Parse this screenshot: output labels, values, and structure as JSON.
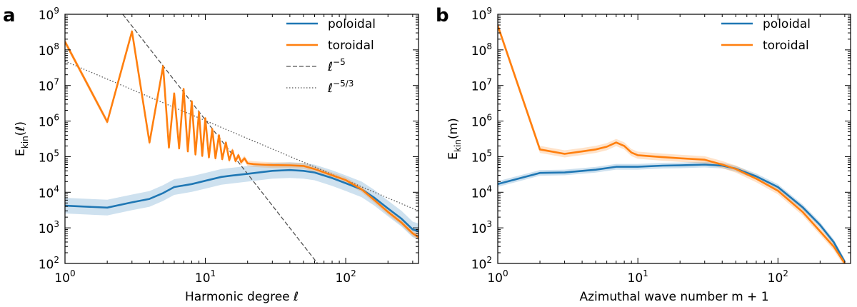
{
  "chart_data": [
    {
      "type": "line",
      "panel": "a",
      "xscale": "log",
      "yscale": "log",
      "xlim": [
        1,
        330
      ],
      "ylim": [
        100,
        1000000000
      ],
      "xlabel": "Harmonic degree ℓ",
      "ylabel": "E_kin(ℓ)",
      "ylabel_main": "E",
      "ylabel_sub": "kin",
      "ylabel_arg": "(ℓ)",
      "xticks": [
        {
          "value": 1,
          "base": "10",
          "exp": "0"
        },
        {
          "value": 10,
          "base": "10",
          "exp": "1"
        },
        {
          "value": 100,
          "base": "10",
          "exp": "2"
        }
      ],
      "yticks": [
        {
          "value": 100,
          "base": "10",
          "exp": "2"
        },
        {
          "value": 1000,
          "base": "10",
          "exp": "3"
        },
        {
          "value": 10000,
          "base": "10",
          "exp": "4"
        },
        {
          "value": 100000,
          "base": "10",
          "exp": "5"
        },
        {
          "value": 1000000,
          "base": "10",
          "exp": "6"
        },
        {
          "value": 10000000,
          "base": "10",
          "exp": "7"
        },
        {
          "value": 100000000,
          "base": "10",
          "exp": "8"
        },
        {
          "value": 1000000000,
          "base": "10",
          "exp": "9"
        }
      ],
      "legend_position": "top-right",
      "legend": [
        {
          "label": "poloidal",
          "style": "solid",
          "color": "#1f77b4"
        },
        {
          "label": "toroidal",
          "style": "solid",
          "color": "#ff7f0e"
        },
        {
          "label_base": "ℓ",
          "label_exp": "−5",
          "style": "dashed",
          "color": "#555555"
        },
        {
          "label_base": "ℓ",
          "label_exp": "−5/3",
          "style": "dotted",
          "color": "#555555"
        }
      ],
      "series": [
        {
          "name": "poloidal",
          "color": "#1f77b4",
          "band": 0.22,
          "points": [
            [
              1,
              4200
            ],
            [
              2,
              3700
            ],
            [
              3,
              5200
            ],
            [
              4,
              6500
            ],
            [
              5,
              9500
            ],
            [
              6,
              14000
            ],
            [
              8,
              17000
            ],
            [
              10,
              21000
            ],
            [
              13,
              27000
            ],
            [
              15,
              29000
            ],
            [
              20,
              33000
            ],
            [
              30,
              40000
            ],
            [
              40,
              42000
            ],
            [
              50,
              40000
            ],
            [
              60,
              36000
            ],
            [
              80,
              25000
            ],
            [
              100,
              18000
            ],
            [
              130,
              12000
            ],
            [
              160,
              7000
            ],
            [
              200,
              3500
            ],
            [
              250,
              1800
            ],
            [
              300,
              900
            ],
            [
              330,
              800
            ]
          ]
        },
        {
          "name": "toroidal",
          "color": "#ff7f0e",
          "band": 0.08,
          "points": [
            [
              1,
              170000000
            ],
            [
              2,
              950000
            ],
            [
              3,
              330000000
            ],
            [
              4,
              250000
            ],
            [
              5,
              35000000
            ],
            [
              5.5,
              180000
            ],
            [
              6,
              6000000
            ],
            [
              6.5,
              170000
            ],
            [
              7,
              8000000
            ],
            [
              7.5,
              140000
            ],
            [
              8,
              3600000
            ],
            [
              8.5,
              115000
            ],
            [
              9,
              1800000
            ],
            [
              9.5,
              105000
            ],
            [
              10,
              1200000
            ],
            [
              10.6,
              95000
            ],
            [
              11.2,
              600000
            ],
            [
              11.8,
              90000
            ],
            [
              12.5,
              400000
            ],
            [
              13.2,
              85000
            ],
            [
              14,
              250000
            ],
            [
              14.8,
              80000
            ],
            [
              15.6,
              150000
            ],
            [
              16.4,
              75000
            ],
            [
              17.2,
              110000
            ],
            [
              18,
              70000
            ],
            [
              19,
              90000
            ],
            [
              20,
              65000
            ],
            [
              22,
              62000
            ],
            [
              25,
              60000
            ],
            [
              30,
              58000
            ],
            [
              40,
              57000
            ],
            [
              50,
              55000
            ],
            [
              60,
              45000
            ],
            [
              80,
              30000
            ],
            [
              100,
              22000
            ],
            [
              130,
              12000
            ],
            [
              160,
              6000
            ],
            [
              200,
              2800
            ],
            [
              250,
              1400
            ],
            [
              300,
              700
            ],
            [
              330,
              550
            ]
          ]
        }
      ],
      "reference_lines": [
        {
          "name": "ℓ^-5",
          "style": "dashed",
          "color": "#555555",
          "points": [
            [
              2.58,
              1000000000
            ],
            [
              63,
              100
            ]
          ]
        },
        {
          "name": "ℓ^-5/3",
          "style": "dotted",
          "color": "#555555",
          "points": [
            [
              1,
              48000000
            ],
            [
              330,
              3000
            ]
          ]
        }
      ]
    },
    {
      "type": "line",
      "panel": "b",
      "xscale": "log",
      "yscale": "log",
      "xlim": [
        1,
        330
      ],
      "ylim": [
        100,
        1000000000
      ],
      "xlabel": "Azimuthal wave number m + 1",
      "ylabel": "E_kin(m)",
      "ylabel_main": "E",
      "ylabel_sub": "kin",
      "ylabel_arg": "(m)",
      "xticks": [
        {
          "value": 1,
          "base": "10",
          "exp": "0"
        },
        {
          "value": 10,
          "base": "10",
          "exp": "1"
        },
        {
          "value": 100,
          "base": "10",
          "exp": "2"
        }
      ],
      "yticks": [
        {
          "value": 100,
          "base": "10",
          "exp": "2"
        },
        {
          "value": 1000,
          "base": "10",
          "exp": "3"
        },
        {
          "value": 10000,
          "base": "10",
          "exp": "4"
        },
        {
          "value": 100000,
          "base": "10",
          "exp": "5"
        },
        {
          "value": 1000000,
          "base": "10",
          "exp": "6"
        },
        {
          "value": 10000000,
          "base": "10",
          "exp": "7"
        },
        {
          "value": 100000000,
          "base": "10",
          "exp": "8"
        },
        {
          "value": 1000000000,
          "base": "10",
          "exp": "9"
        }
      ],
      "legend_position": "top-right",
      "legend": [
        {
          "label": "poloidal",
          "style": "solid",
          "color": "#1f77b4"
        },
        {
          "label": "toroidal",
          "style": "solid",
          "color": "#ff7f0e"
        }
      ],
      "series": [
        {
          "name": "poloidal",
          "color": "#1f77b4",
          "band": 0.08,
          "points": [
            [
              1,
              17000
            ],
            [
              2,
              35000
            ],
            [
              3,
              36000
            ],
            [
              5,
              43000
            ],
            [
              7,
              52000
            ],
            [
              10,
              52000
            ],
            [
              15,
              56000
            ],
            [
              20,
              57000
            ],
            [
              30,
              60000
            ],
            [
              40,
              56000
            ],
            [
              50,
              46000
            ],
            [
              70,
              28000
            ],
            [
              100,
              14000
            ],
            [
              150,
              3800
            ],
            [
              200,
              1200
            ],
            [
              250,
              400
            ],
            [
              300,
              110
            ]
          ]
        },
        {
          "name": "toroidal",
          "color": "#ff7f0e",
          "band": 0.1,
          "points": [
            [
              1,
              480000000
            ],
            [
              2,
              160000
            ],
            [
              3,
              120000
            ],
            [
              4,
              140000
            ],
            [
              5,
              160000
            ],
            [
              6,
              190000
            ],
            [
              7,
              250000
            ],
            [
              8,
              200000
            ],
            [
              9,
              130000
            ],
            [
              10,
              110000
            ],
            [
              15,
              97000
            ],
            [
              20,
              90000
            ],
            [
              30,
              82000
            ],
            [
              40,
              60000
            ],
            [
              50,
              45000
            ],
            [
              70,
              24000
            ],
            [
              100,
              11000
            ],
            [
              150,
              2800
            ],
            [
              200,
              800
            ],
            [
              250,
              300
            ],
            [
              300,
              100
            ]
          ]
        }
      ],
      "reference_lines": []
    }
  ],
  "panels": [
    {
      "letter": "a"
    },
    {
      "letter": "b"
    }
  ]
}
